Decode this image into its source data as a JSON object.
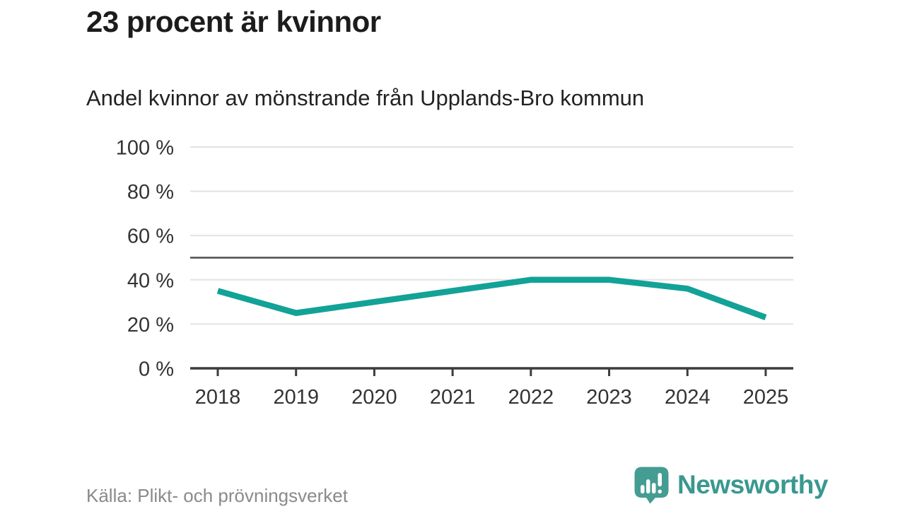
{
  "header": {
    "title": "23 procent är kvinnor",
    "subtitle": "Andel kvinnor av mönstrande från Upplands-Bro kommun"
  },
  "footer": {
    "source": "Källa: Plikt- och prövningsverket",
    "brand": "Newsworthy"
  },
  "chart_data": {
    "type": "line",
    "title": "23 procent är kvinnor",
    "subtitle": "Andel kvinnor av mönstrande från Upplands-Bro kommun",
    "x": [
      "2018",
      "2019",
      "2020",
      "2021",
      "2022",
      "2023",
      "2024",
      "2025"
    ],
    "series": [
      {
        "name": "Andel kvinnor av mönstrande",
        "color": "#13a297",
        "values": [
          35,
          25,
          30,
          35,
          40,
          40,
          36,
          23
        ]
      }
    ],
    "unit": "%",
    "ylim": [
      0,
      100
    ],
    "yticks": [
      0,
      20,
      40,
      60,
      80,
      100
    ],
    "ytick_suffix": " %",
    "reference_line": {
      "value": 50,
      "color": "#4d4d4d"
    },
    "grid": true,
    "legend": "none",
    "axis_color": "#3c3c3c",
    "gridline_color": "#e3e3e3",
    "tick_label_color": "#333333",
    "source": "Källa: Plikt- och prövningsverket"
  }
}
